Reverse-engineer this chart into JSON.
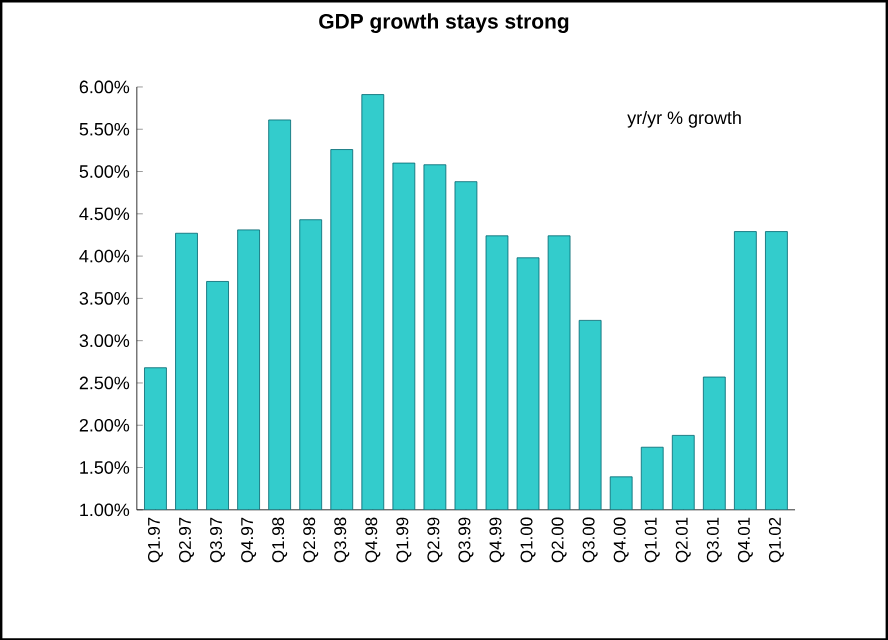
{
  "chart_data": {
    "type": "bar",
    "title": "GDP growth stays strong",
    "annotations": [
      "yr/yr % growth"
    ],
    "categories": [
      "Q1.97",
      "Q2.97",
      "Q3.97",
      "Q4.97",
      "Q1.98",
      "Q2.98",
      "Q3.98",
      "Q4.98",
      "Q1.99",
      "Q2.99",
      "Q3.99",
      "Q4.99",
      "Q1.00",
      "Q2.00",
      "Q3.00",
      "Q4.00",
      "Q1.01",
      "Q2.01",
      "Q3.01",
      "Q4.01",
      "Q1.02"
    ],
    "values": [
      2.68,
      4.27,
      3.7,
      4.31,
      5.61,
      4.43,
      5.26,
      5.91,
      5.1,
      5.08,
      4.88,
      4.24,
      3.98,
      4.24,
      3.24,
      1.39,
      1.74,
      1.88,
      2.57,
      4.29,
      4.29
    ],
    "color": "#33cccc",
    "ylim": [
      1,
      6
    ],
    "yticks": [
      {
        "value": 1,
        "label": "1.00%"
      },
      {
        "value": 1.5,
        "label": "1.50%"
      },
      {
        "value": 2,
        "label": "2.00%"
      },
      {
        "value": 2.5,
        "label": "2.50%"
      },
      {
        "value": 3,
        "label": "3.00%"
      },
      {
        "value": 3.5,
        "label": "3.50%"
      },
      {
        "value": 4,
        "label": "4.00%"
      },
      {
        "value": 4.5,
        "label": "4.50%"
      },
      {
        "value": 5,
        "label": "5.00%"
      },
      {
        "value": 5.5,
        "label": "5.50%"
      },
      {
        "value": 6,
        "label": "6.00%"
      }
    ],
    "marker": "none"
  }
}
